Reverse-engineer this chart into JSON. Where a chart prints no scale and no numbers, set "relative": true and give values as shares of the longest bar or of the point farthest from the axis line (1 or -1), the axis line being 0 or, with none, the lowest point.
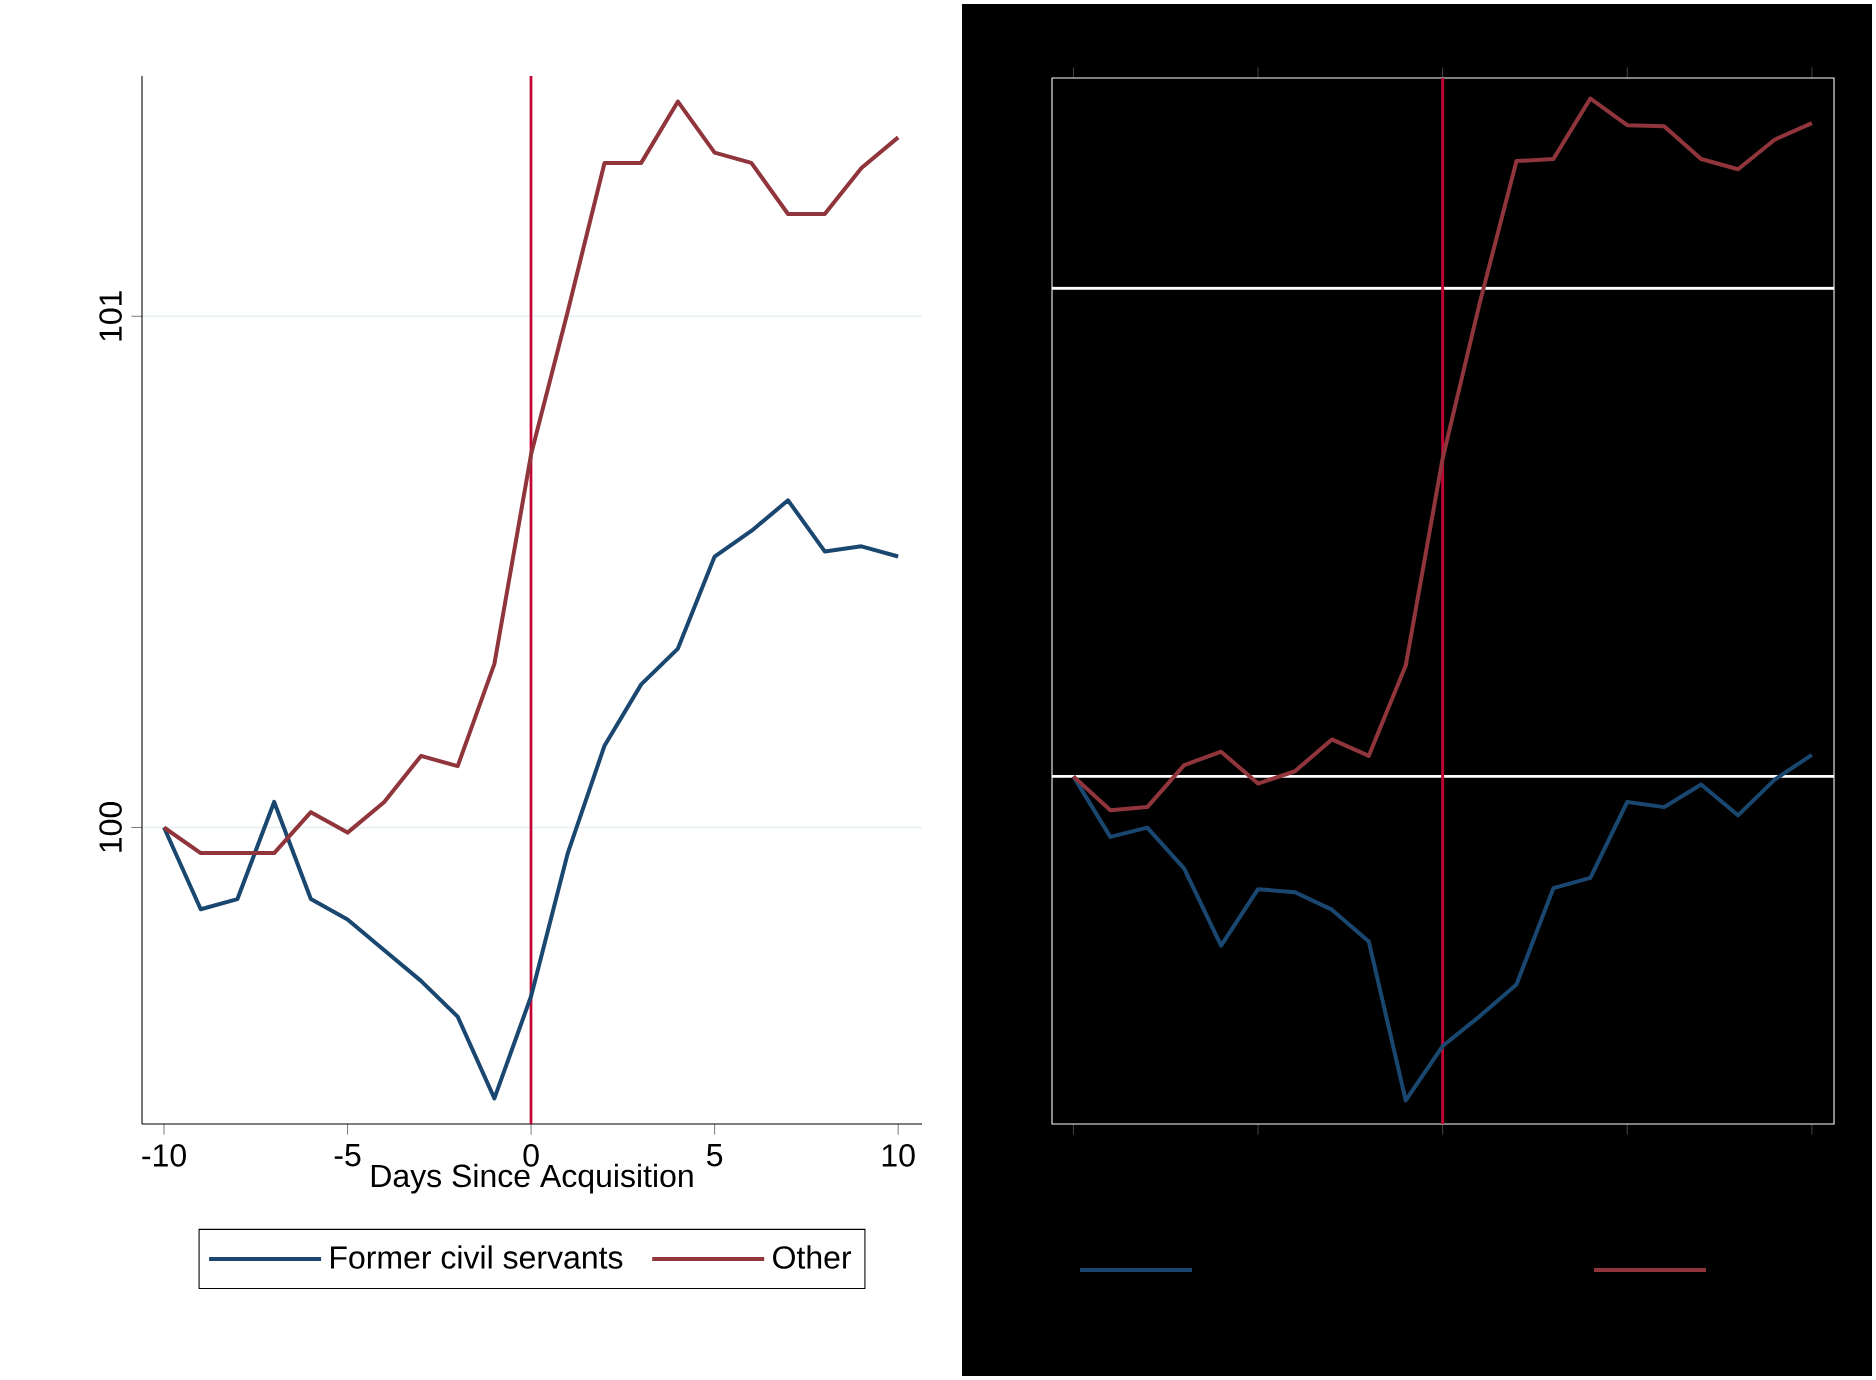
{
  "chart_data": [
    {
      "type": "line",
      "xlabel": "Days Since Acquisition",
      "x": [
        -10,
        -9,
        -8,
        -7,
        -6,
        -5,
        -4,
        -3,
        -2,
        -1,
        0,
        1,
        2,
        3,
        4,
        5,
        6,
        7,
        8,
        9,
        10
      ],
      "xlim": [
        -10.6,
        10.65
      ],
      "xticks": [
        -10,
        -5,
        0,
        5,
        10
      ],
      "ylim": [
        99.42,
        101.47
      ],
      "yticks": [
        100,
        101
      ],
      "grid": "y",
      "legend": "bottom",
      "series": [
        {
          "name": "Former civil servants",
          "color": "#1a476f",
          "values": [
            100.0,
            99.84,
            99.86,
            100.05,
            99.86,
            99.82,
            99.76,
            99.7,
            99.63,
            99.47,
            99.67,
            99.95,
            100.16,
            100.28,
            100.35,
            100.53,
            100.58,
            100.64,
            100.54,
            100.55,
            100.53
          ]
        },
        {
          "name": "Other",
          "color": "#90353b",
          "values": [
            100.0,
            99.95,
            99.95,
            99.95,
            100.03,
            99.99,
            100.05,
            100.14,
            100.12,
            100.32,
            100.73,
            101.01,
            101.3,
            101.3,
            101.42,
            101.32,
            101.3,
            101.2,
            101.2,
            101.29,
            101.35
          ]
        }
      ],
      "ref_lines": [
        {
          "axis": "x",
          "value": 0,
          "color": "#c10534"
        }
      ]
    },
    {
      "type": "line",
      "relative": true,
      "categories": [
        null,
        null,
        null,
        null,
        null,
        null,
        null,
        null,
        null,
        null,
        null,
        null,
        null,
        null,
        null,
        null,
        null,
        null,
        null,
        null,
        null
      ],
      "series": [
        {
          "color": "#1a476f",
          "values": [
            0.339,
            0.28,
            0.289,
            0.249,
            0.174,
            0.229,
            0.226,
            0.209,
            0.178,
            0.023,
            0.076,
            0.105,
            0.136,
            0.23,
            0.24,
            0.314,
            0.309,
            0.331,
            0.301,
            0.336,
            0.36
          ]
        },
        {
          "color": "#90353b",
          "values": [
            0.339,
            0.306,
            0.309,
            0.35,
            0.363,
            0.332,
            0.344,
            0.375,
            0.359,
            0.447,
            0.649,
            0.8,
            0.939,
            0.941,
            1.0,
            0.974,
            0.973,
            0.941,
            0.931,
            0.96,
            0.976
          ]
        }
      ],
      "ref_lines": [
        {
          "axis": "y",
          "value": 0.339,
          "color": "#ffffff"
        },
        {
          "axis": "y",
          "value": 0.815,
          "color": "#ffffff"
        }
      ]
    }
  ]
}
